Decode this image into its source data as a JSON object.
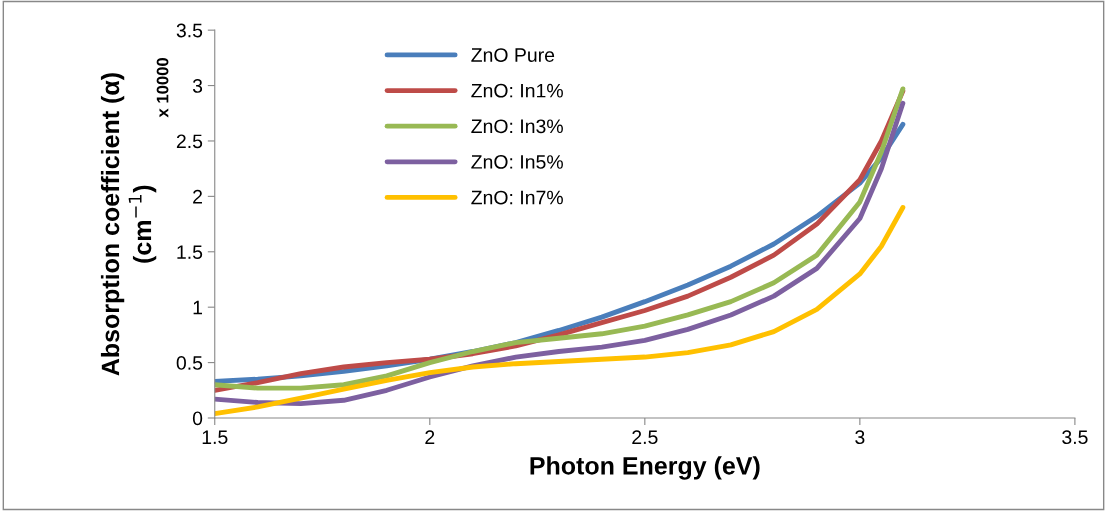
{
  "chart_data": {
    "type": "line",
    "xlabel": "Photon Energy (eV)",
    "ylabel": "Absorption coefficient (α)\n(cm$^{−1}$)",
    "annotations": [
      "x 10000"
    ],
    "x": [
      1.5,
      1.6,
      1.7,
      1.8,
      1.9,
      2.0,
      2.1,
      2.2,
      2.3,
      2.4,
      2.5,
      2.6,
      2.7,
      2.8,
      2.9,
      3.0,
      3.05,
      3.1
    ],
    "series": [
      {
        "name": "ZnO Pure",
        "color": "#4a7ebb",
        "values": [
          0.33,
          0.35,
          0.38,
          0.42,
          0.47,
          0.53,
          0.6,
          0.68,
          0.79,
          0.91,
          1.05,
          1.2,
          1.37,
          1.57,
          1.82,
          2.12,
          2.35,
          2.65
        ]
      },
      {
        "name": "ZnO: In1%",
        "color": "#be4b48",
        "values": [
          0.25,
          0.32,
          0.4,
          0.46,
          0.5,
          0.53,
          0.58,
          0.65,
          0.75,
          0.86,
          0.97,
          1.1,
          1.27,
          1.47,
          1.75,
          2.15,
          2.5,
          2.95
        ]
      },
      {
        "name": "ZnO: In3%",
        "color": "#98b954",
        "values": [
          0.3,
          0.27,
          0.27,
          0.3,
          0.38,
          0.5,
          0.6,
          0.68,
          0.72,
          0.76,
          0.83,
          0.93,
          1.05,
          1.22,
          1.47,
          1.95,
          2.4,
          2.97
        ]
      },
      {
        "name": "ZnO: In5%",
        "color": "#7d60a0",
        "values": [
          0.17,
          0.14,
          0.13,
          0.16,
          0.25,
          0.37,
          0.47,
          0.55,
          0.6,
          0.64,
          0.7,
          0.8,
          0.93,
          1.1,
          1.35,
          1.8,
          2.25,
          2.84
        ]
      },
      {
        "name": "ZnO: In7%",
        "color": "#ffc000",
        "values": [
          0.04,
          0.1,
          0.18,
          0.26,
          0.34,
          0.41,
          0.46,
          0.49,
          0.51,
          0.53,
          0.55,
          0.59,
          0.66,
          0.78,
          0.98,
          1.3,
          1.55,
          1.9
        ]
      }
    ],
    "xlim": [
      1.5,
      3.5
    ],
    "xticks": [
      1.5,
      2,
      2.5,
      3,
      3.5
    ],
    "ylim": [
      0,
      3.5
    ],
    "yticks": [
      0,
      0.5,
      1,
      1.5,
      2,
      2.5,
      3,
      3.5
    ],
    "grid": false,
    "legend": "top left",
    "marker": "none",
    "line_style": "solid"
  }
}
